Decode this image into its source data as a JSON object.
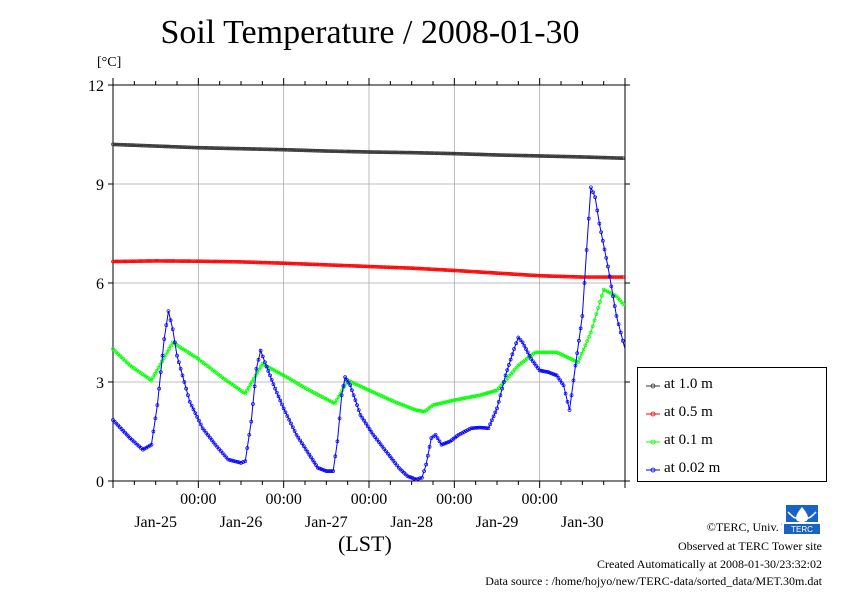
{
  "title": "Soil Temperature / 2008-01-30",
  "unit_label": "[°C]",
  "credits": [
    "©TERC, Univ. Tsukuba",
    "Observed at TERC Tower site",
    "Created Automatically at 2008-01-30/23:32:02",
    "Data source : /home/hojyo/new/TERC-data/sorted_data/MET.30m.dat"
  ],
  "logo_text": "TERC",
  "chart_data": {
    "type": "line",
    "title": "Soil Temperature / 2008-01-30",
    "xlabel": "(LST)",
    "ylabel": "[°C]",
    "xlim": [
      0,
      6
    ],
    "ylim": [
      0,
      12
    ],
    "x_unit": "days since 2008-01-24 00:00 LST",
    "yticks": [
      0,
      3,
      6,
      9,
      12
    ],
    "xtick_positions": [
      1,
      2,
      3,
      4,
      5
    ],
    "xtick_labels": [
      "00:00",
      "00:00",
      "00:00",
      "00:00",
      "00:00"
    ],
    "date_labels": [
      "Jan-25",
      "Jan-26",
      "Jan-27",
      "Jan-28",
      "Jan-29",
      "Jan-30"
    ],
    "grid": true,
    "legend_position": "bottom-right outside",
    "series": [
      {
        "name": "at 1.0 m",
        "color": "#333333",
        "points": [
          [
            0.0,
            10.2
          ],
          [
            0.5,
            10.15
          ],
          [
            1.0,
            10.1
          ],
          [
            1.5,
            10.07
          ],
          [
            2.0,
            10.04
          ],
          [
            2.5,
            10.0
          ],
          [
            3.0,
            9.97
          ],
          [
            3.5,
            9.95
          ],
          [
            4.0,
            9.92
          ],
          [
            4.5,
            9.88
          ],
          [
            5.0,
            9.85
          ],
          [
            5.5,
            9.82
          ],
          [
            6.0,
            9.78
          ]
        ]
      },
      {
        "name": "at 0.5 m",
        "color": "#ff0000",
        "points": [
          [
            0.0,
            6.65
          ],
          [
            0.5,
            6.67
          ],
          [
            1.0,
            6.66
          ],
          [
            1.5,
            6.64
          ],
          [
            2.0,
            6.6
          ],
          [
            2.5,
            6.55
          ],
          [
            3.0,
            6.5
          ],
          [
            3.5,
            6.45
          ],
          [
            4.0,
            6.38
          ],
          [
            4.5,
            6.3
          ],
          [
            5.0,
            6.22
          ],
          [
            5.5,
            6.18
          ],
          [
            6.0,
            6.18
          ]
        ]
      },
      {
        "name": "at 0.1 m",
        "color": "#00ff00",
        "points": [
          [
            0.0,
            4.0
          ],
          [
            0.2,
            3.5
          ],
          [
            0.45,
            3.05
          ],
          [
            0.7,
            4.2
          ],
          [
            1.0,
            3.7
          ],
          [
            1.3,
            3.1
          ],
          [
            1.55,
            2.65
          ],
          [
            1.75,
            3.55
          ],
          [
            2.0,
            3.2
          ],
          [
            2.3,
            2.75
          ],
          [
            2.6,
            2.35
          ],
          [
            2.75,
            3.05
          ],
          [
            3.0,
            2.75
          ],
          [
            3.3,
            2.4
          ],
          [
            3.55,
            2.15
          ],
          [
            3.65,
            2.1
          ],
          [
            3.75,
            2.3
          ],
          [
            4.0,
            2.45
          ],
          [
            4.3,
            2.6
          ],
          [
            4.5,
            2.75
          ],
          [
            4.75,
            3.5
          ],
          [
            4.95,
            3.9
          ],
          [
            5.2,
            3.9
          ],
          [
            5.45,
            3.6
          ],
          [
            5.6,
            4.5
          ],
          [
            5.75,
            5.8
          ],
          [
            5.9,
            5.6
          ],
          [
            6.0,
            5.3
          ]
        ]
      },
      {
        "name": "at 0.02 m",
        "color": "#0000ff",
        "points": [
          [
            0.0,
            1.85
          ],
          [
            0.2,
            1.3
          ],
          [
            0.35,
            0.95
          ],
          [
            0.45,
            1.1
          ],
          [
            0.52,
            2.3
          ],
          [
            0.6,
            4.3
          ],
          [
            0.65,
            5.15
          ],
          [
            0.7,
            4.6
          ],
          [
            0.75,
            3.8
          ],
          [
            0.9,
            2.4
          ],
          [
            1.05,
            1.6
          ],
          [
            1.2,
            1.1
          ],
          [
            1.35,
            0.65
          ],
          [
            1.5,
            0.55
          ],
          [
            1.55,
            0.6
          ],
          [
            1.62,
            1.8
          ],
          [
            1.68,
            3.4
          ],
          [
            1.73,
            3.95
          ],
          [
            1.78,
            3.6
          ],
          [
            1.9,
            2.8
          ],
          [
            2.0,
            2.2
          ],
          [
            2.15,
            1.4
          ],
          [
            2.3,
            0.8
          ],
          [
            2.4,
            0.4
          ],
          [
            2.5,
            0.3
          ],
          [
            2.58,
            0.3
          ],
          [
            2.63,
            1.2
          ],
          [
            2.68,
            2.6
          ],
          [
            2.72,
            3.15
          ],
          [
            2.78,
            2.9
          ],
          [
            2.9,
            2.0
          ],
          [
            3.05,
            1.4
          ],
          [
            3.2,
            0.9
          ],
          [
            3.35,
            0.4
          ],
          [
            3.45,
            0.15
          ],
          [
            3.55,
            0.05
          ],
          [
            3.62,
            0.1
          ],
          [
            3.67,
            0.5
          ],
          [
            3.73,
            1.3
          ],
          [
            3.78,
            1.4
          ],
          [
            3.85,
            1.1
          ],
          [
            3.95,
            1.2
          ],
          [
            4.05,
            1.4
          ],
          [
            4.2,
            1.6
          ],
          [
            4.3,
            1.62
          ],
          [
            4.4,
            1.6
          ],
          [
            4.5,
            2.2
          ],
          [
            4.6,
            3.2
          ],
          [
            4.7,
            4.0
          ],
          [
            4.75,
            4.35
          ],
          [
            4.8,
            4.2
          ],
          [
            4.9,
            3.7
          ],
          [
            5.0,
            3.35
          ],
          [
            5.1,
            3.3
          ],
          [
            5.2,
            3.2
          ],
          [
            5.28,
            2.9
          ],
          [
            5.35,
            2.15
          ],
          [
            5.42,
            3.5
          ],
          [
            5.5,
            5.0
          ],
          [
            5.55,
            7.0
          ],
          [
            5.6,
            8.9
          ],
          [
            5.65,
            8.6
          ],
          [
            5.7,
            7.8
          ],
          [
            5.8,
            6.5
          ],
          [
            5.9,
            5.0
          ],
          [
            5.95,
            4.5
          ],
          [
            6.0,
            4.0
          ]
        ]
      }
    ]
  }
}
